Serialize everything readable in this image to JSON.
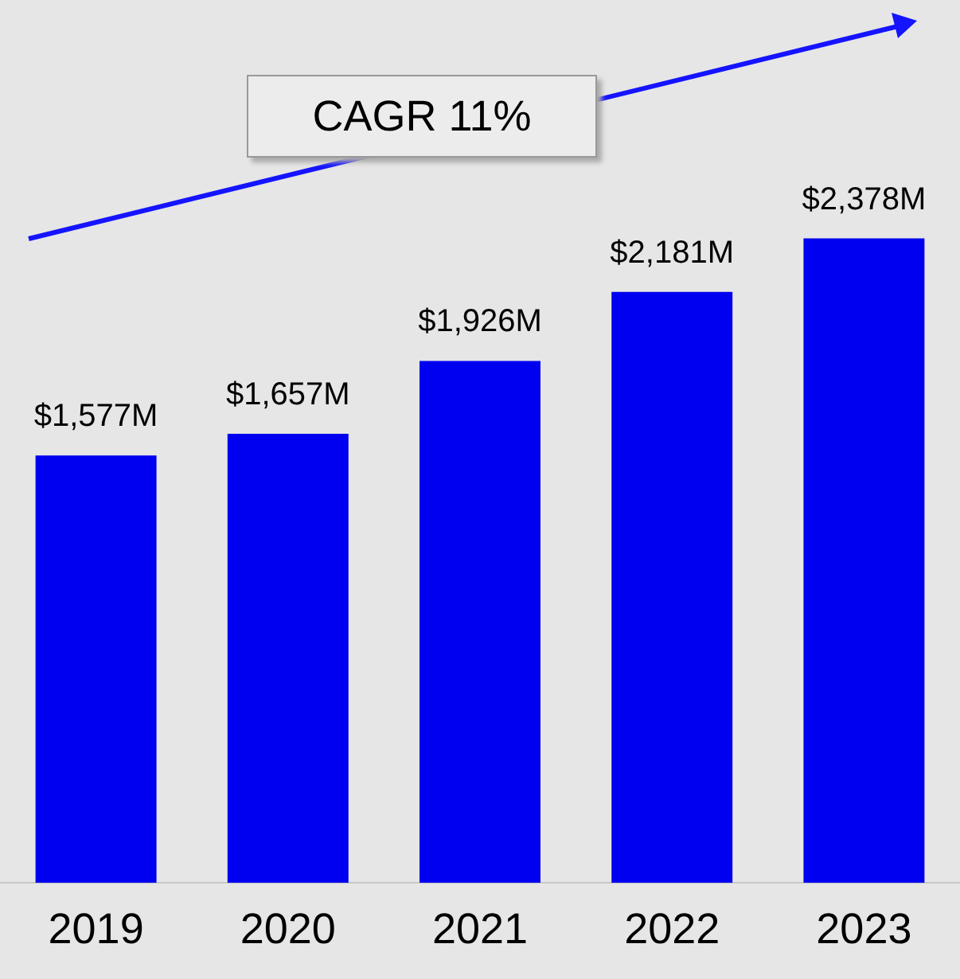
{
  "chart_data": {
    "type": "bar",
    "categories": [
      "2019",
      "2020",
      "2021",
      "2022",
      "2023"
    ],
    "values": [
      1577,
      1657,
      1926,
      2181,
      2378
    ],
    "value_labels": [
      "$1,577M",
      "$1,657M",
      "$1,926M",
      "$2,181M",
      "$2,378M"
    ],
    "color": "#0000f0",
    "annotations": [
      "CAGR 11%"
    ],
    "grid": false,
    "legend": false
  }
}
